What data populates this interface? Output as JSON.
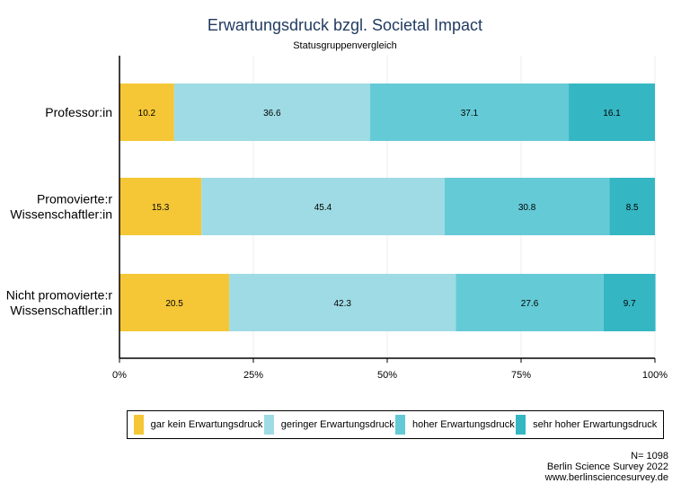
{
  "chart_data": {
    "type": "bar",
    "orientation": "horizontal",
    "stacked": true,
    "title": "Erwartungsdruck bzgl. Societal Impact",
    "subtitle": "Statusgruppenvergleich",
    "categories": [
      [
        "Professor:in"
      ],
      [
        "Promovierte:r",
        "Wissenschaftler:in"
      ],
      [
        "Nicht promovierte:r",
        "Wissenschaftler:in"
      ]
    ],
    "series": [
      {
        "name": "gar kein Erwartungsdruck",
        "color": "#f5c736",
        "values": [
          10.2,
          15.3,
          20.5
        ],
        "labels": [
          "10.2",
          "15.3",
          "20.5"
        ]
      },
      {
        "name": "geringer Erwartungsdruck",
        "color": "#9edbe4",
        "values": [
          36.6,
          45.4,
          42.3
        ],
        "labels": [
          "36.6",
          "45.4",
          "42.3"
        ]
      },
      {
        "name": "hoher Erwartungsdruck",
        "color": "#64cad6",
        "values": [
          37.1,
          30.8,
          27.6
        ],
        "labels": [
          "37.1",
          "30.8",
          "27.6"
        ]
      },
      {
        "name": "sehr hoher Erwartungsdruck",
        "color": "#35b6c3",
        "values": [
          16.1,
          8.5,
          9.7
        ],
        "labels": [
          "16.1",
          "8.5",
          "9.7"
        ]
      }
    ],
    "xlim": [
      0,
      100
    ],
    "xticks": [
      0,
      25,
      50,
      75,
      100
    ],
    "xtick_labels": [
      "0%",
      "25%",
      "50%",
      "75%",
      "100%"
    ],
    "grid": true,
    "legend_position": "bottom"
  },
  "footer": {
    "n": "N= 1098",
    "source": "Berlin Science Survey 2022",
    "url": "www.berlinsciencesurvey.de"
  }
}
